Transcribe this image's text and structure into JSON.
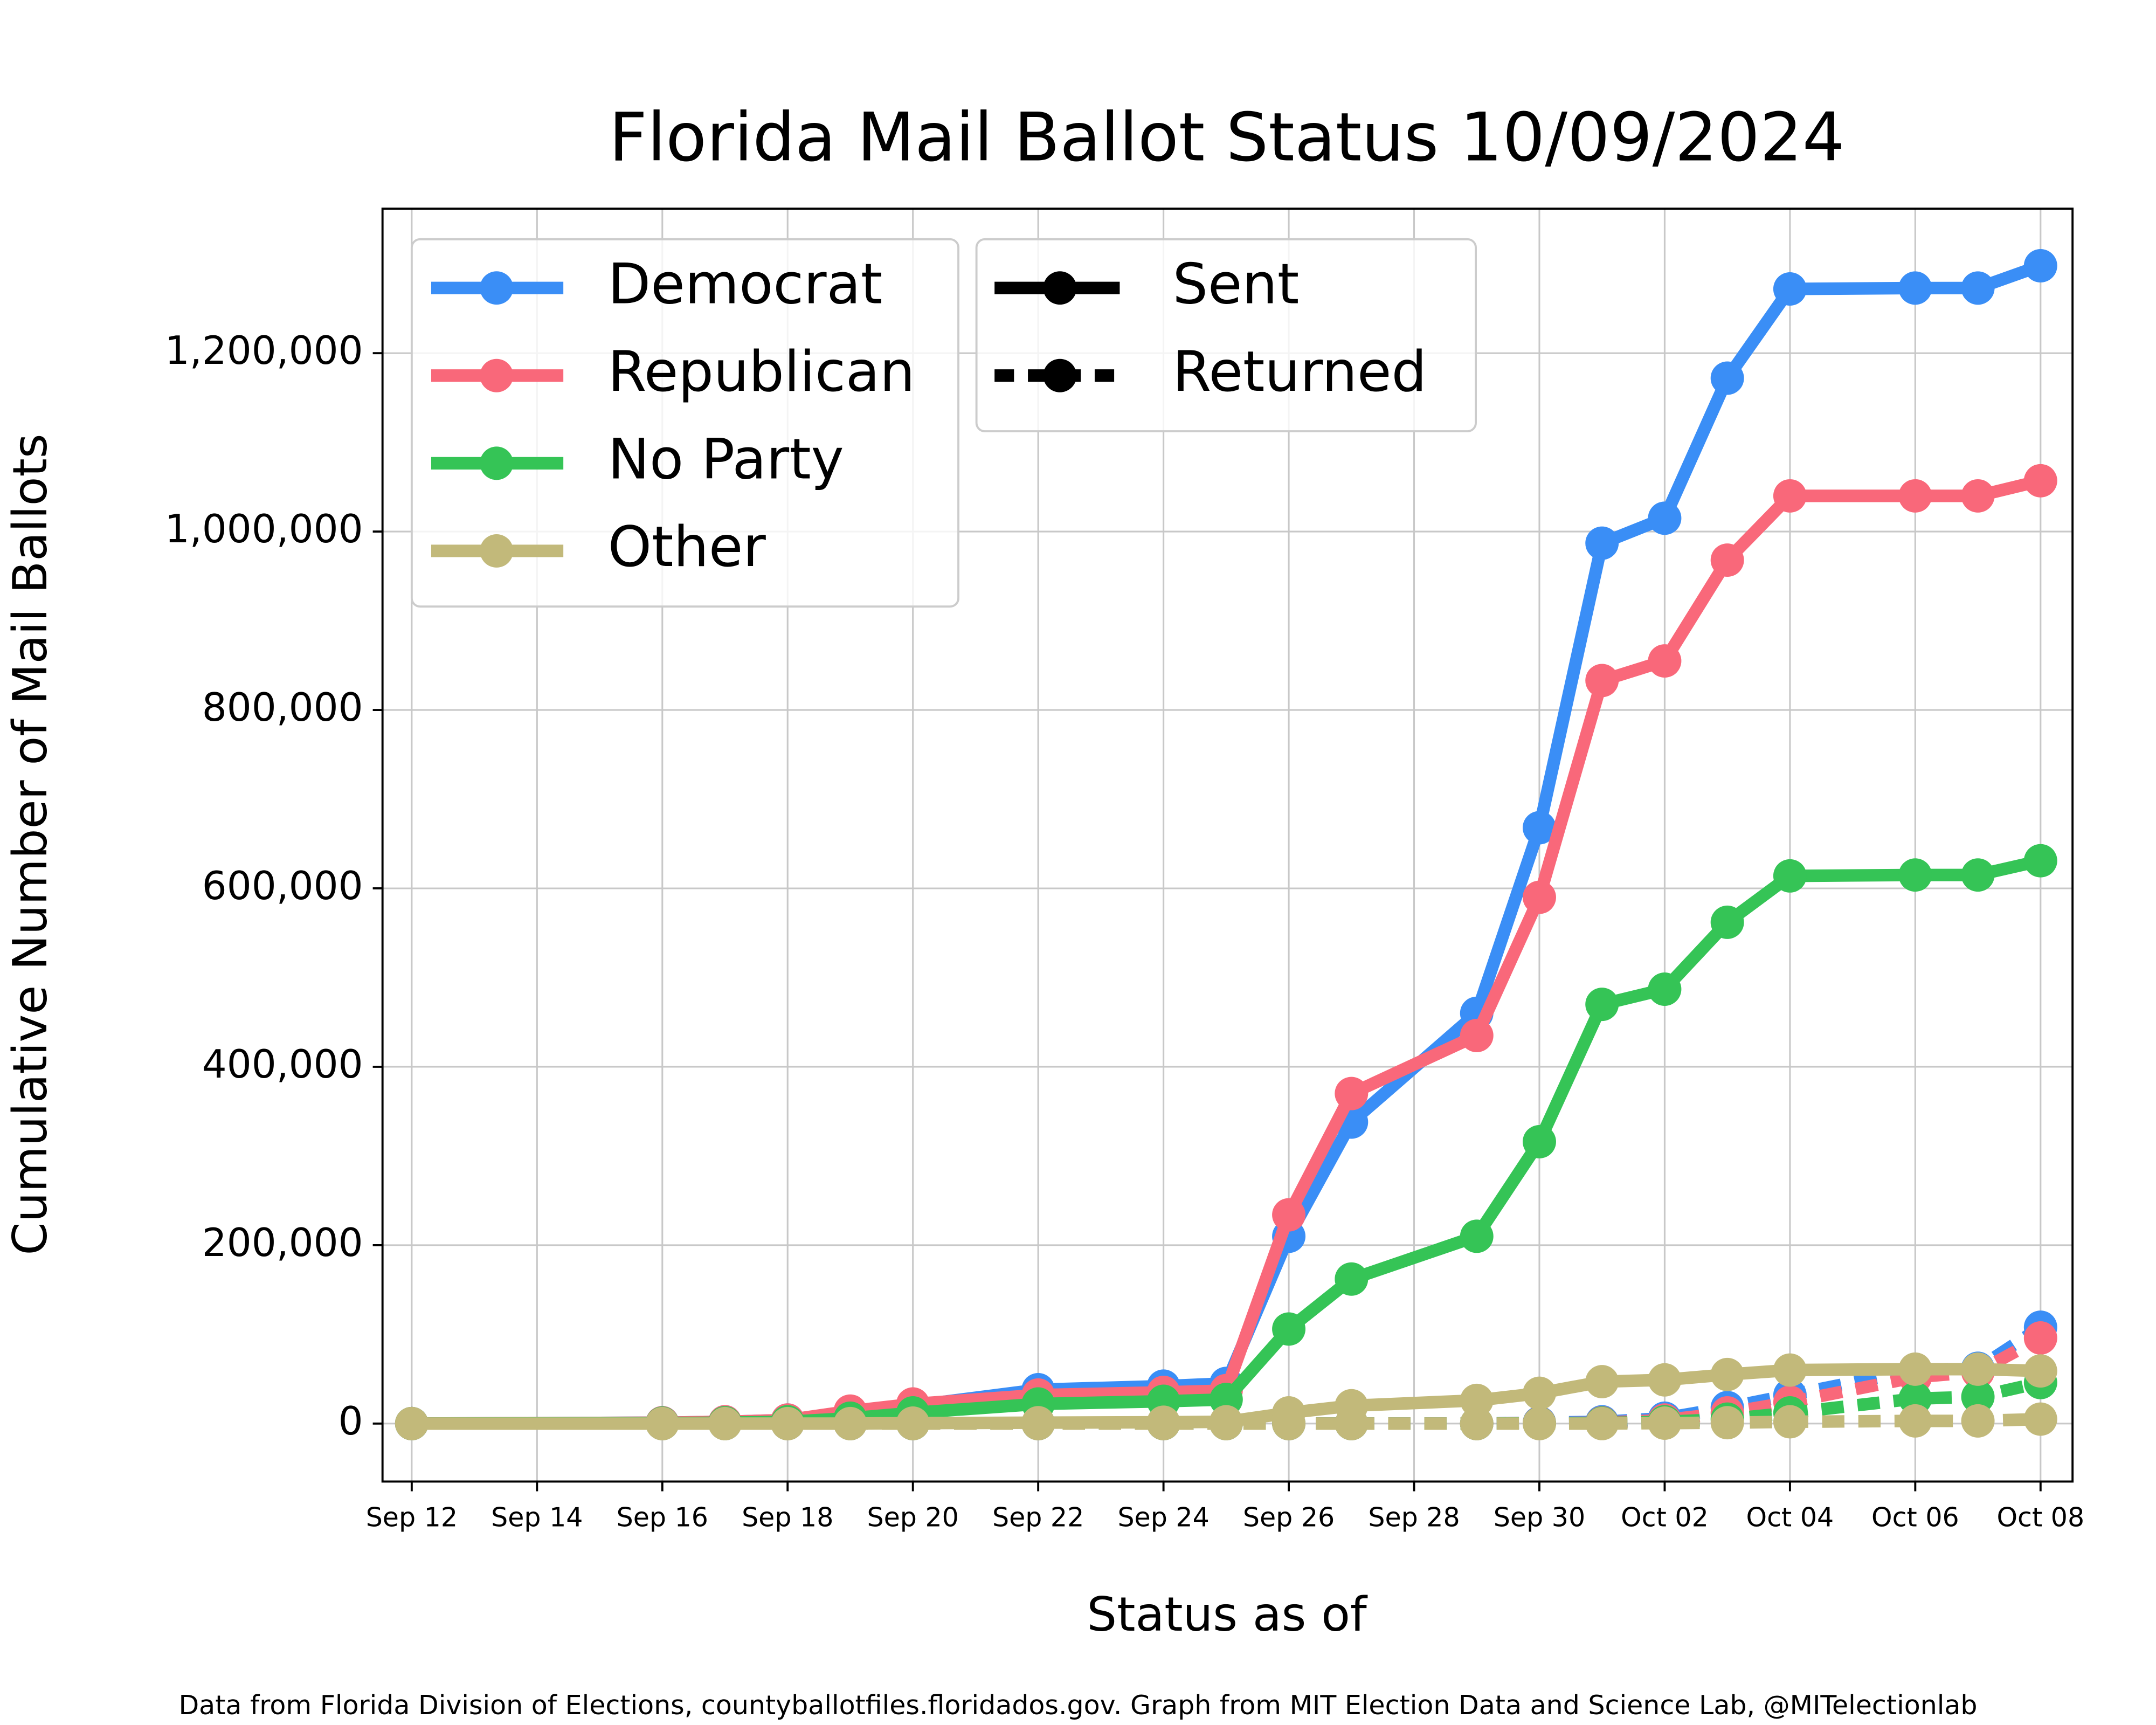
{
  "chart_data": {
    "type": "line",
    "title": "Florida Mail Ballot Status 10/09/2024",
    "x_label": "Status as of",
    "y_label": "Cumulative Number of Mail Ballots",
    "footnote": "Data from Florida Division of Elections, countyballotfiles.floridados.gov. Graph from MIT Election Data and Science Lab, @MITelectionlab",
    "x": [
      "Sep 12",
      "Sep 16",
      "Sep 17",
      "Sep 18",
      "Sep 19",
      "Sep 20",
      "Sep 22",
      "Sep 24",
      "Sep 25",
      "Sep 26",
      "Sep 27",
      "Sep 29",
      "Sep 30",
      "Oct 01",
      "Oct 02",
      "Oct 03",
      "Oct 04",
      "Oct 06",
      "Oct 07",
      "Oct 08"
    ],
    "xlim": [
      "Sep 12",
      "Oct 08"
    ],
    "xticks": [
      "Sep 12",
      "Sep 14",
      "Sep 16",
      "Sep 18",
      "Sep 20",
      "Sep 22",
      "Sep 24",
      "Sep 26",
      "Sep 28",
      "Sep 30",
      "Oct 02",
      "Oct 04",
      "Oct 06",
      "Oct 08"
    ],
    "ylim": [
      -65000,
      1362000
    ],
    "yticks": [
      0,
      {
        "value": 200000,
        "label": "200,000"
      },
      {
        "value": 400000,
        "label": "400,000"
      },
      {
        "value": 600000,
        "label": "600,000"
      },
      {
        "value": 800000,
        "label": "800,000"
      },
      {
        "value": 1000000,
        "label": "1,000,000"
      },
      {
        "value": 1200000,
        "label": "1,200,000"
      }
    ],
    "grid": true,
    "line_styles": [
      {
        "label": "Sent",
        "dashed": false
      },
      {
        "label": "Returned",
        "dashed": true
      }
    ],
    "series": [
      {
        "name": "Democrat",
        "color": "#3a8ef6",
        "values": [
          0,
          1000,
          2000,
          4000,
          10000,
          20000,
          38000,
          42000,
          45000,
          210000,
          338000,
          460000,
          668000,
          987000,
          1015000,
          1172000,
          1272000,
          1273000,
          1273000,
          1298000
        ],
        "returned": [
          0,
          0,
          0,
          0,
          0,
          0,
          0,
          0,
          0,
          0,
          0,
          0,
          1000,
          2000,
          6000,
          18000,
          32000,
          60000,
          62000,
          108000
        ]
      },
      {
        "name": "Republican",
        "color": "#f9687a",
        "values": [
          0,
          1000,
          2000,
          4000,
          14000,
          22000,
          32000,
          35000,
          37000,
          234000,
          370000,
          435000,
          590000,
          833000,
          855000,
          968000,
          1040000,
          1040000,
          1040000,
          1057000
        ],
        "returned": [
          0,
          0,
          0,
          0,
          0,
          0,
          0,
          0,
          0,
          0,
          0,
          0,
          500,
          1000,
          4000,
          12000,
          24000,
          52000,
          58000,
          96000
        ]
      },
      {
        "name": "No Party",
        "color": "#35c456",
        "values": [
          0,
          500,
          1000,
          2000,
          6000,
          12000,
          22000,
          25000,
          27000,
          106000,
          162000,
          210000,
          316000,
          470000,
          487000,
          562000,
          614000,
          615000,
          615000,
          631000
        ],
        "returned": [
          0,
          0,
          0,
          0,
          0,
          0,
          0,
          0,
          0,
          0,
          0,
          0,
          200,
          500,
          2000,
          5000,
          12000,
          28000,
          30000,
          46000
        ]
      },
      {
        "name": "Other",
        "color": "#c2b97a",
        "values": [
          0,
          0,
          0,
          0,
          0,
          500,
          1000,
          1500,
          2000,
          12000,
          20000,
          26000,
          34000,
          47000,
          49000,
          55000,
          60000,
          61000,
          61000,
          59000
        ],
        "returned": [
          0,
          0,
          0,
          0,
          0,
          0,
          0,
          0,
          0,
          0,
          0,
          0,
          0,
          0,
          500,
          1000,
          2000,
          3000,
          3000,
          5000
        ]
      }
    ]
  }
}
